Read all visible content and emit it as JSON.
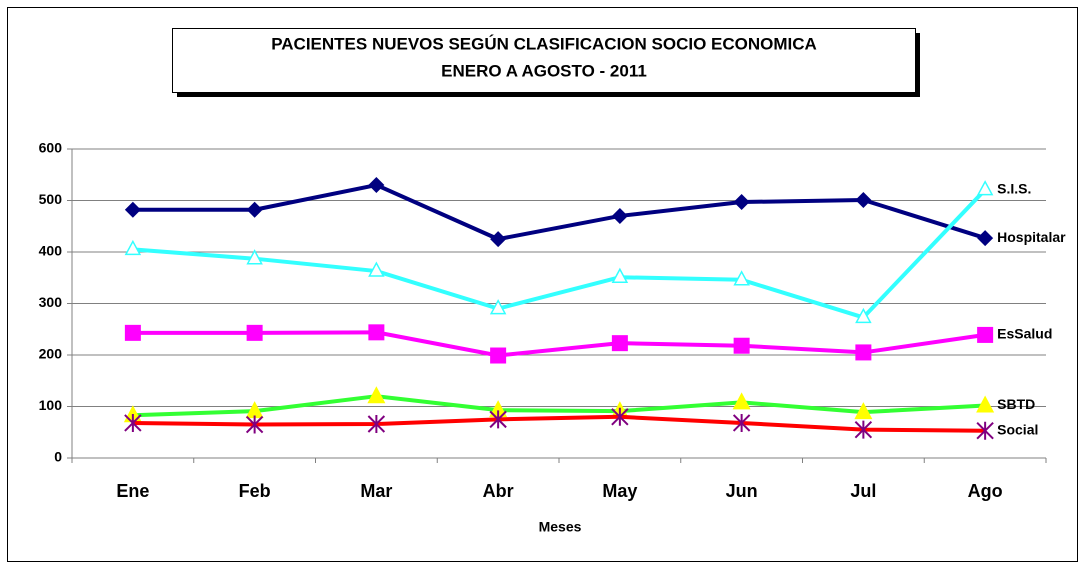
{
  "chart_data": {
    "type": "line",
    "title": "PACIENTES NUEVOS SEGÚN CLASIFICACION SOCIO ECONOMICA",
    "subtitle": "ENERO A AGOSTO  -  2011",
    "x_label": "Meses",
    "categories": [
      "Ene",
      "Feb",
      "Mar",
      "Abr",
      "May",
      "Jun",
      "Jul",
      "Ago"
    ],
    "ylim": [
      0,
      600
    ],
    "yticks": [
      0,
      100,
      200,
      300,
      400,
      500,
      600
    ],
    "grid": true,
    "series": [
      {
        "name": "Hospitalar",
        "color": "#000080",
        "marker_color": "#000080",
        "marker": "diamond",
        "values": [
          482,
          482,
          530,
          425,
          470,
          497,
          501,
          427
        ]
      },
      {
        "name": "S.I.S.",
        "color": "#33ffff",
        "marker_color": "#33ffff",
        "marker": "open-triangle",
        "values": [
          405,
          387,
          363,
          290,
          351,
          346,
          273,
          521
        ]
      },
      {
        "name": "EsSalud",
        "color": "#ff00ff",
        "marker_color": "#ff00ff",
        "marker": "square",
        "values": [
          243,
          243,
          244,
          199,
          223,
          218,
          205,
          239
        ]
      },
      {
        "name": "SBTD",
        "color": "#33ff33",
        "marker_color": "#ffff00",
        "marker": "triangle",
        "values": [
          83,
          91,
          120,
          93,
          91,
          108,
          89,
          102
        ]
      },
      {
        "name": "Social",
        "color": "#ff0000",
        "marker_color": "#800080",
        "marker": "asterisk",
        "values": [
          68,
          65,
          66,
          75,
          80,
          68,
          55,
          53
        ]
      }
    ]
  }
}
